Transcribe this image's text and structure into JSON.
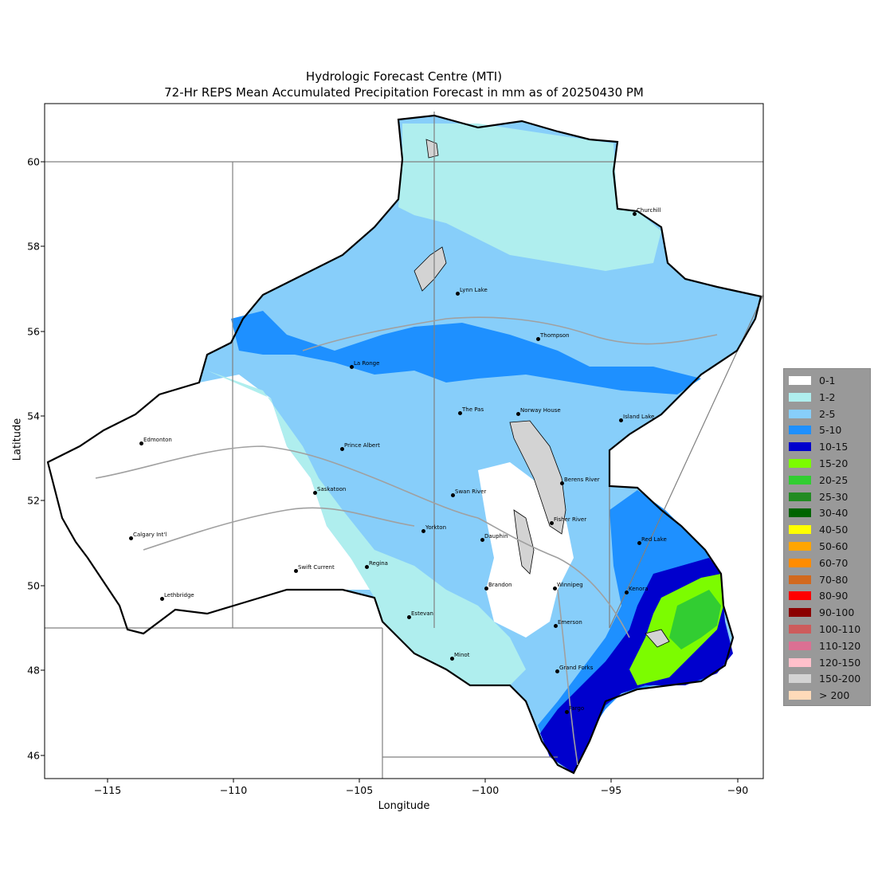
{
  "title": {
    "line1": "Hydrologic Forecast Centre (MTI)",
    "line2": "72-Hr REPS Mean Accumulated Precipitation Forecast in mm as of 20250430 PM"
  },
  "axes": {
    "xlabel": "Longitude",
    "ylabel": "Latitude",
    "xticks": [
      "−115",
      "−110",
      "−105",
      "−100",
      "−95",
      "−90"
    ],
    "yticks": [
      "46",
      "48",
      "50",
      "52",
      "54",
      "56",
      "58",
      "60"
    ]
  },
  "legend": [
    {
      "label": "0-1",
      "color": "#ffffff"
    },
    {
      "label": "1-2",
      "color": "#afeeee"
    },
    {
      "label": "2-5",
      "color": "#87cefa"
    },
    {
      "label": "5-10",
      "color": "#1e90ff"
    },
    {
      "label": "10-15",
      "color": "#0000cd"
    },
    {
      "label": "15-20",
      "color": "#7cfc00"
    },
    {
      "label": "20-25",
      "color": "#32cd32"
    },
    {
      "label": "25-30",
      "color": "#228b22"
    },
    {
      "label": "30-40",
      "color": "#006400"
    },
    {
      "label": "40-50",
      "color": "#ffff00"
    },
    {
      "label": "50-60",
      "color": "#ffa500"
    },
    {
      "label": "60-70",
      "color": "#ff8c00"
    },
    {
      "label": "70-80",
      "color": "#d2691e"
    },
    {
      "label": "80-90",
      "color": "#ff0000"
    },
    {
      "label": "90-100",
      "color": "#8b0000"
    },
    {
      "label": "100-110",
      "color": "#cd5c5c"
    },
    {
      "label": "110-120",
      "color": "#db7093"
    },
    {
      "label": "120-150",
      "color": "#ffc0cb"
    },
    {
      "label": "150-200",
      "color": "#d3d3d3"
    },
    {
      "label": "> 200",
      "color": "#ffdab9"
    }
  ],
  "cities": [
    {
      "name": "Churchill"
    },
    {
      "name": "Lynn Lake"
    },
    {
      "name": "Thompson"
    },
    {
      "name": "La Ronge"
    },
    {
      "name": "The Pas"
    },
    {
      "name": "Norway House"
    },
    {
      "name": "Island Lake"
    },
    {
      "name": "Edmonton"
    },
    {
      "name": "Prince Albert"
    },
    {
      "name": "Saskatoon"
    },
    {
      "name": "Swan River"
    },
    {
      "name": "Berens River"
    },
    {
      "name": "Calgary Int'l"
    },
    {
      "name": "Yorkton"
    },
    {
      "name": "Dauphin"
    },
    {
      "name": "Fisher River"
    },
    {
      "name": "Red Lake"
    },
    {
      "name": "Swift Current"
    },
    {
      "name": "Regina"
    },
    {
      "name": "Brandon"
    },
    {
      "name": "Winnipeg"
    },
    {
      "name": "Kenora"
    },
    {
      "name": "Lethbridge"
    },
    {
      "name": "Estevan"
    },
    {
      "name": "Emerson"
    },
    {
      "name": "Minot"
    },
    {
      "name": "Grand Forks"
    },
    {
      "name": "Fargo"
    }
  ]
}
